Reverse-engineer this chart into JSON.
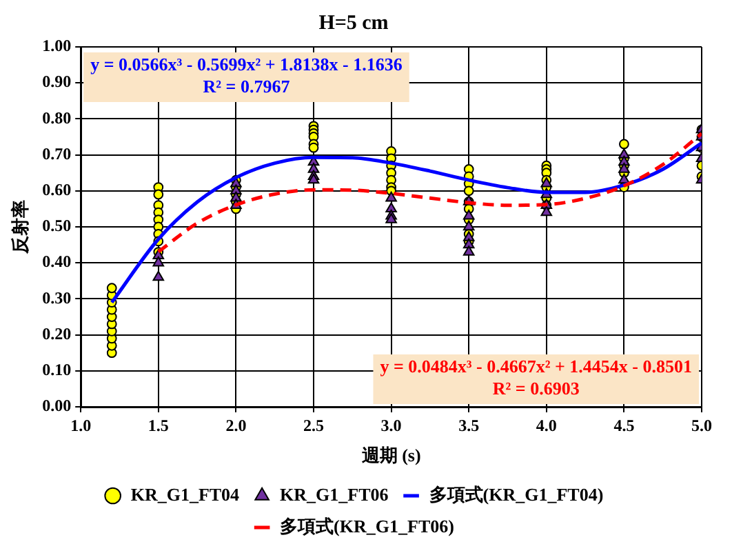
{
  "chart_data": {
    "type": "scatter",
    "title": "H=5 cm",
    "xlabel": "週期 (s)",
    "ylabel": "反射率",
    "xlim": [
      1.0,
      5.0
    ],
    "xticks": [
      {
        "value": 1,
        "label": "1.0"
      },
      1.5,
      {
        "value": 2,
        "label": "2.0"
      },
      2.5,
      {
        "value": 3,
        "label": "3.0"
      },
      3.5,
      {
        "value": 4,
        "label": "4.0"
      },
      4.5,
      {
        "value": 5,
        "label": "5.0"
      }
    ],
    "ylim": [
      0,
      1
    ],
    "yticks": [
      {
        "value": 0,
        "label": "0.00"
      },
      {
        "value": 0.1,
        "label": "0.10"
      },
      {
        "value": 0.2,
        "label": "0.20"
      },
      {
        "value": 0.3,
        "label": "0.30"
      },
      {
        "value": 0.4,
        "label": "0.40"
      },
      {
        "value": 0.5,
        "label": "0.50"
      },
      {
        "value": 0.6,
        "label": "0.60"
      },
      {
        "value": 0.7,
        "label": "0.70"
      },
      {
        "value": 0.8,
        "label": "0.80"
      },
      {
        "value": 0.9,
        "label": "0.90"
      },
      {
        "value": 1,
        "label": "1.00"
      }
    ],
    "grid": true,
    "legend": "bottom",
    "series": [
      {
        "name": "KR_G1_FT04",
        "marker": "circle",
        "color": "#ffff00",
        "x": [
          1.2,
          1.2,
          1.2,
          1.2,
          1.2,
          1.2,
          1.2,
          1.2,
          1.2,
          1.2,
          1.5,
          1.5,
          1.5,
          1.5,
          1.5,
          1.5,
          1.5,
          1.5,
          1.5,
          2,
          2,
          2,
          2,
          2,
          2.5,
          2.5,
          2.5,
          2.5,
          2.5,
          2.5,
          3,
          3,
          3,
          3,
          3,
          3,
          3,
          3.5,
          3.5,
          3.5,
          3.5,
          3.5,
          3.5,
          3.5,
          3.5,
          3.5,
          4,
          4,
          4,
          4,
          4,
          4,
          4,
          4.5,
          4.5,
          4.5,
          4.5,
          4.5,
          5,
          5,
          5,
          5,
          5
        ],
        "values": [
          0.15,
          0.17,
          0.19,
          0.21,
          0.23,
          0.25,
          0.27,
          0.29,
          0.31,
          0.33,
          0.61,
          0.59,
          0.56,
          0.54,
          0.52,
          0.5,
          0.48,
          0.46,
          0.43,
          0.63,
          0.61,
          0.59,
          0.57,
          0.55,
          0.78,
          0.77,
          0.76,
          0.75,
          0.73,
          0.72,
          0.71,
          0.69,
          0.67,
          0.65,
          0.63,
          0.61,
          0.6,
          0.66,
          0.64,
          0.62,
          0.6,
          0.57,
          0.55,
          0.52,
          0.48,
          0.46,
          0.67,
          0.66,
          0.65,
          0.63,
          0.61,
          0.58,
          0.56,
          0.73,
          0.69,
          0.67,
          0.65,
          0.61,
          0.77,
          0.75,
          0.72,
          0.67,
          0.64
        ]
      },
      {
        "name": "KR_G1_FT06",
        "marker": "triangle",
        "color": "#7030a0",
        "x": [
          1.5,
          1.5,
          1.5,
          2,
          2,
          2,
          2,
          2.5,
          2.5,
          2.5,
          2.5,
          3,
          3,
          3,
          3,
          3.5,
          3.5,
          3.5,
          3.5,
          3.5,
          3.5,
          4,
          4,
          4,
          4,
          4.5,
          4.5,
          4.5,
          4.5,
          5,
          5,
          5,
          5,
          5
        ],
        "values": [
          0.42,
          0.4,
          0.36,
          0.62,
          0.6,
          0.58,
          0.56,
          0.68,
          0.66,
          0.64,
          0.63,
          0.58,
          0.55,
          0.53,
          0.52,
          0.57,
          0.53,
          0.5,
          0.47,
          0.45,
          0.43,
          0.62,
          0.59,
          0.56,
          0.54,
          0.7,
          0.68,
          0.66,
          0.63,
          0.77,
          0.75,
          0.72,
          0.69,
          0.63
        ]
      },
      {
        "name": "多項式(KR_G1_FT04)",
        "type": "line",
        "marker": "none",
        "line_style": "solid",
        "color": "#0000ff",
        "x": [
          1.2,
          1.5,
          1.75,
          2,
          2.25,
          2.5,
          2.75,
          3,
          3.25,
          3.5,
          3.75,
          4,
          4.25,
          4.5,
          4.75,
          5
        ],
        "values": [
          0.29,
          0.466,
          0.569,
          0.637,
          0.677,
          0.693,
          0.692,
          0.677,
          0.655,
          0.63,
          0.609,
          0.596,
          0.596,
          0.616,
          0.66,
          0.733
        ]
      },
      {
        "name": "多項式(KR_G1_FT06)",
        "type": "line",
        "marker": "none",
        "line_style": "dashed",
        "color": "#ff0000",
        "x": [
          1.5,
          1.75,
          2,
          2.25,
          2.5,
          2.75,
          3,
          3.25,
          3.5,
          3.75,
          4,
          4.25,
          4.5,
          4.75,
          5
        ],
        "values": [
          0.431,
          0.51,
          0.561,
          0.591,
          0.603,
          0.602,
          0.593,
          0.58,
          0.567,
          0.56,
          0.562,
          0.579,
          0.614,
          0.673,
          0.759
        ]
      }
    ],
    "annotations": [
      "y = 0.0566x³ - 0.5699x² + 1.8138x - 1.1636\nR² = 0.7967",
      "y = 0.0484x³ - 0.4667x² + 1.4454x - 0.8501\nR² = 0.6903"
    ]
  }
}
